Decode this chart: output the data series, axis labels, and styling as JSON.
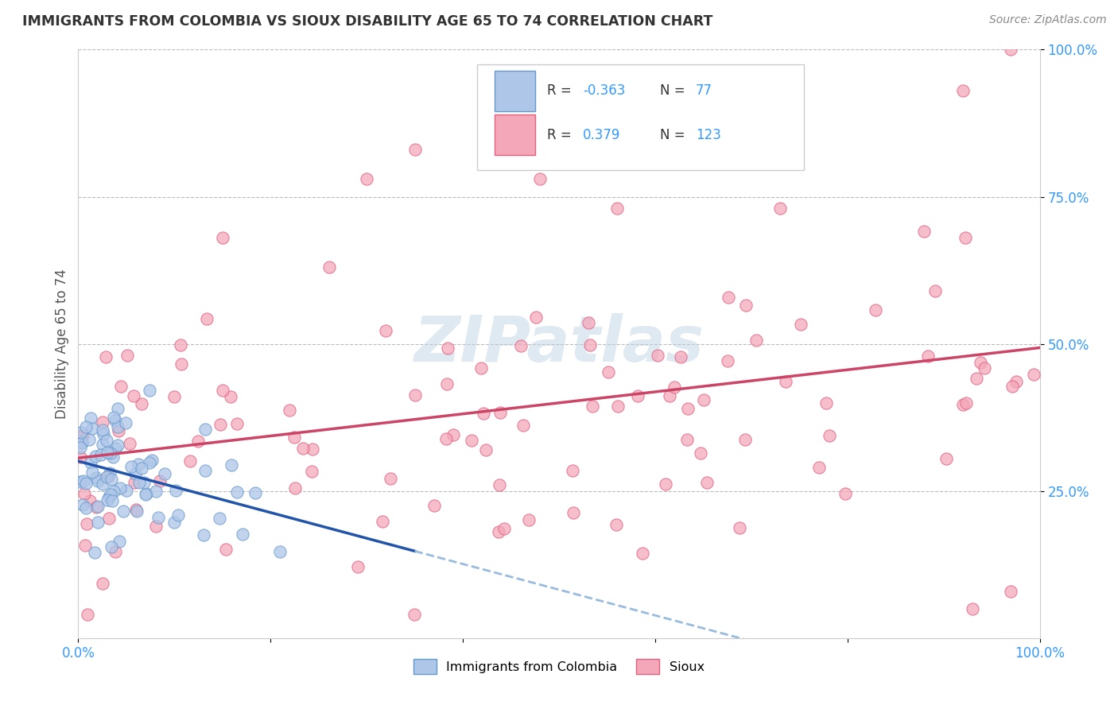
{
  "title": "IMMIGRANTS FROM COLOMBIA VS SIOUX DISABILITY AGE 65 TO 74 CORRELATION CHART",
  "source": "Source: ZipAtlas.com",
  "ylabel": "Disability Age 65 to 74",
  "xlim": [
    0.0,
    1.0
  ],
  "ylim": [
    0.0,
    1.0
  ],
  "colombia_color": "#aec6e8",
  "colombia_edge": "#6699cc",
  "sioux_color": "#f4a7b9",
  "sioux_edge": "#e06080",
  "colombia_R": -0.363,
  "colombia_N": 77,
  "sioux_R": 0.379,
  "sioux_N": 123,
  "trend_colombia_solid_color": "#2255aa",
  "trend_colombia_dash_color": "#99bbdd",
  "trend_sioux_color": "#cc4466",
  "watermark": "ZIPatlas",
  "background_color": "#ffffff",
  "grid_color": "#bbbbbb"
}
